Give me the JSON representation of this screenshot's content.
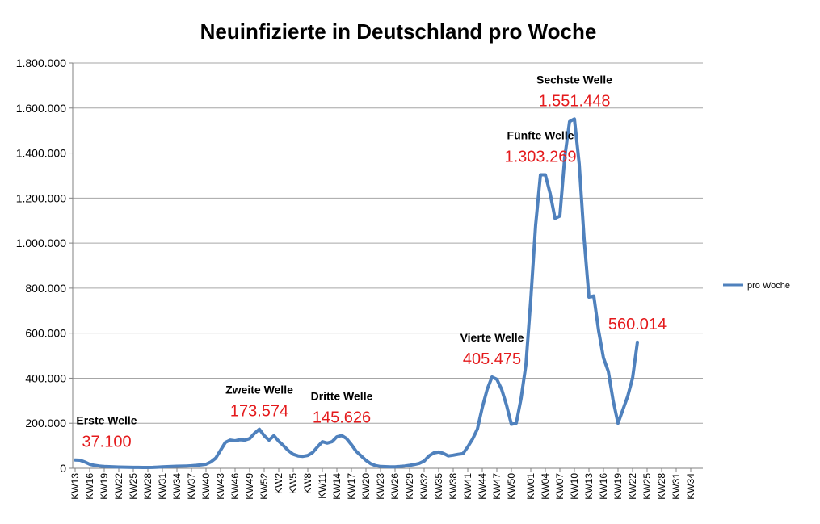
{
  "chart_data": {
    "type": "line",
    "title": "Neuinfizierte in Deutschland pro Woche",
    "xlabel": "",
    "ylabel": "",
    "ylim": [
      0,
      1800000
    ],
    "grid": true,
    "legend_position": "right",
    "y_ticks": [
      {
        "value": 0,
        "label": "0"
      },
      {
        "value": 200000,
        "label": "200.000"
      },
      {
        "value": 400000,
        "label": "400.000"
      },
      {
        "value": 600000,
        "label": "600.000"
      },
      {
        "value": 800000,
        "label": "800.000"
      },
      {
        "value": 1000000,
        "label": "1.000.000"
      },
      {
        "value": 1200000,
        "label": "1.200.000"
      },
      {
        "value": 1400000,
        "label": "1.400.000"
      },
      {
        "value": 1600000,
        "label": "1.600.000"
      },
      {
        "value": 1800000,
        "label": "1.800.000"
      }
    ],
    "x_labels": [
      {
        "index": 0,
        "label": "KW13"
      },
      {
        "index": 3,
        "label": "KW16"
      },
      {
        "index": 6,
        "label": "KW19"
      },
      {
        "index": 9,
        "label": "KW22"
      },
      {
        "index": 12,
        "label": "KW25"
      },
      {
        "index": 15,
        "label": "KW28"
      },
      {
        "index": 18,
        "label": "KW31"
      },
      {
        "index": 21,
        "label": "KW34"
      },
      {
        "index": 24,
        "label": "KW37"
      },
      {
        "index": 27,
        "label": "KW40"
      },
      {
        "index": 30,
        "label": "KW43"
      },
      {
        "index": 33,
        "label": "KW46"
      },
      {
        "index": 36,
        "label": "KW49"
      },
      {
        "index": 39,
        "label": "KW52"
      },
      {
        "index": 42,
        "label": "KW2"
      },
      {
        "index": 45,
        "label": "KW5"
      },
      {
        "index": 48,
        "label": "KW8"
      },
      {
        "index": 51,
        "label": "KW11"
      },
      {
        "index": 54,
        "label": "KW14"
      },
      {
        "index": 57,
        "label": "KW17"
      },
      {
        "index": 60,
        "label": "KW20"
      },
      {
        "index": 63,
        "label": "KW23"
      },
      {
        "index": 66,
        "label": "KW26"
      },
      {
        "index": 69,
        "label": "KW29"
      },
      {
        "index": 72,
        "label": "KW32"
      },
      {
        "index": 75,
        "label": "KW35"
      },
      {
        "index": 78,
        "label": "KW38"
      },
      {
        "index": 81,
        "label": "KW41"
      },
      {
        "index": 84,
        "label": "KW44"
      },
      {
        "index": 87,
        "label": "KW47"
      },
      {
        "index": 90,
        "label": "KW50"
      },
      {
        "index": 94,
        "label": "KW01"
      },
      {
        "index": 97,
        "label": "KW04"
      },
      {
        "index": 100,
        "label": "KW07"
      },
      {
        "index": 103,
        "label": "KW10"
      },
      {
        "index": 106,
        "label": "KW13"
      },
      {
        "index": 109,
        "label": "KW16"
      },
      {
        "index": 112,
        "label": "KW19"
      },
      {
        "index": 115,
        "label": "KW22"
      },
      {
        "index": 118,
        "label": "KW25"
      },
      {
        "index": 121,
        "label": "KW28"
      },
      {
        "index": 124,
        "label": "KW31"
      },
      {
        "index": 127,
        "label": "KW34"
      }
    ],
    "x_count": 130,
    "series": [
      {
        "name": "pro Woche",
        "color": "#4f81bd",
        "values": [
          37100,
          36000,
          28000,
          18000,
          13000,
          10000,
          8000,
          7000,
          6000,
          5500,
          5000,
          4500,
          4000,
          3800,
          3600,
          3500,
          4000,
          5000,
          6000,
          7000,
          8000,
          9000,
          9500,
          10000,
          11000,
          13000,
          15000,
          18000,
          28000,
          45000,
          80000,
          115000,
          125000,
          122000,
          127000,
          125000,
          132000,
          155000,
          173574,
          145000,
          125000,
          145000,
          120000,
          100000,
          78000,
          62000,
          55000,
          53000,
          57000,
          70000,
          95000,
          118000,
          112000,
          118000,
          140000,
          145626,
          132000,
          105000,
          75000,
          55000,
          35000,
          20000,
          12000,
          8000,
          7000,
          6500,
          6500,
          8000,
          10000,
          13000,
          17000,
          22000,
          32000,
          55000,
          68000,
          72000,
          66000,
          55000,
          58000,
          62000,
          65000,
          95000,
          130000,
          175000,
          270000,
          350000,
          405475,
          395000,
          350000,
          280000,
          195000,
          200000,
          310000,
          460000,
          750000,
          1080000,
          1303269,
          1303269,
          1220000,
          1110000,
          1120000,
          1380000,
          1540000,
          1551448,
          1350000,
          1020000,
          760000,
          765000,
          610000,
          490000,
          430000,
          300000,
          200000,
          260000,
          320000,
          400000,
          560014
        ]
      }
    ],
    "annotations": [
      {
        "index": 0,
        "name": "Erste Welle",
        "value_label": "37.100"
      },
      {
        "index": 38,
        "name": "Zweite Welle",
        "value_label": "173.574"
      },
      {
        "index": 55,
        "name": "Dritte Welle",
        "value_label": "145.626"
      },
      {
        "index": 86,
        "name": "Vierte Welle",
        "value_label": "405.475"
      },
      {
        "index": 96,
        "name": "Fünfte Welle",
        "value_label": "1.303.269"
      },
      {
        "index": 103,
        "name": "Sechste Welle",
        "value_label": "1.551.448"
      },
      {
        "index": 116,
        "name": "",
        "value_label": "560.014"
      }
    ]
  }
}
